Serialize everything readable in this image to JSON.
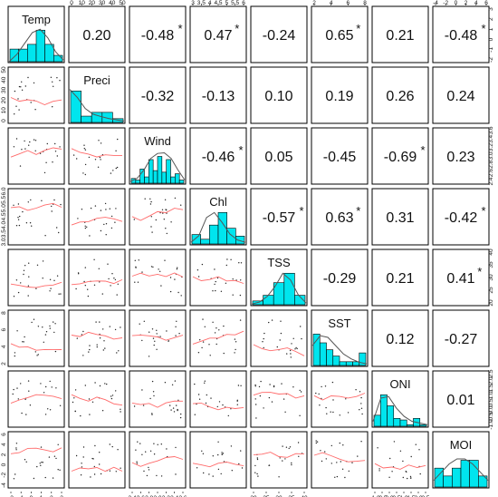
{
  "chart_data": {
    "type": "scatter",
    "variables": [
      "Temp",
      "Preci",
      "Wind",
      "Chl",
      "TSS",
      "SST",
      "ONI",
      "MOI"
    ],
    "correlations": [
      {
        "row": 0,
        "col": 1,
        "label": "0.20",
        "star": false
      },
      {
        "row": 0,
        "col": 2,
        "label": "-0.48",
        "star": true
      },
      {
        "row": 0,
        "col": 3,
        "label": "0.47",
        "star": true
      },
      {
        "row": 0,
        "col": 4,
        "label": "-0.24",
        "star": false
      },
      {
        "row": 0,
        "col": 5,
        "label": "0.65",
        "star": true
      },
      {
        "row": 0,
        "col": 6,
        "label": "0.21",
        "star": false
      },
      {
        "row": 0,
        "col": 7,
        "label": "-0.48",
        "star": true
      },
      {
        "row": 1,
        "col": 2,
        "label": "-0.32",
        "star": false
      },
      {
        "row": 1,
        "col": 3,
        "label": "-0.13",
        "star": false
      },
      {
        "row": 1,
        "col": 4,
        "label": "0.10",
        "star": false
      },
      {
        "row": 1,
        "col": 5,
        "label": "0.19",
        "star": false
      },
      {
        "row": 1,
        "col": 6,
        "label": "0.26",
        "star": false
      },
      {
        "row": 1,
        "col": 7,
        "label": "0.24",
        "star": false
      },
      {
        "row": 2,
        "col": 3,
        "label": "-0.46",
        "star": true
      },
      {
        "row": 2,
        "col": 4,
        "label": "0.05",
        "star": false
      },
      {
        "row": 2,
        "col": 5,
        "label": "-0.45",
        "star": false
      },
      {
        "row": 2,
        "col": 6,
        "label": "-0.69",
        "star": true
      },
      {
        "row": 2,
        "col": 7,
        "label": "0.23",
        "star": false
      },
      {
        "row": 3,
        "col": 4,
        "label": "-0.57",
        "star": true
      },
      {
        "row": 3,
        "col": 5,
        "label": "0.63",
        "star": true
      },
      {
        "row": 3,
        "col": 6,
        "label": "0.31",
        "star": false
      },
      {
        "row": 3,
        "col": 7,
        "label": "-0.42",
        "star": true
      },
      {
        "row": 4,
        "col": 5,
        "label": "-0.29",
        "star": false
      },
      {
        "row": 4,
        "col": 6,
        "label": "0.21",
        "star": false
      },
      {
        "row": 4,
        "col": 7,
        "label": "0.41",
        "star": true
      },
      {
        "row": 5,
        "col": 6,
        "label": "0.12",
        "star": false
      },
      {
        "row": 5,
        "col": 7,
        "label": "-0.27",
        "star": false
      },
      {
        "row": 6,
        "col": 7,
        "label": "0.01",
        "star": false
      }
    ],
    "histograms": [
      {
        "var": "Temp",
        "bars": [
          0.4,
          0.4,
          0.55,
          1.0,
          0.55,
          0.2
        ],
        "curve": [
          0.0,
          0.22,
          0.55,
          0.88,
          0.98,
          0.72,
          0.3,
          0.05
        ]
      },
      {
        "var": "Preci",
        "bars": [
          1.0,
          0.2,
          0.32,
          0.32,
          0.12
        ],
        "curve": [
          1.0,
          0.75,
          0.42,
          0.25,
          0.18,
          0.12,
          0.08,
          0.04
        ]
      },
      {
        "var": "Wind",
        "bars": [
          0.15,
          0.1,
          0.45,
          0.2,
          0.75,
          0.4,
          0.85,
          0.35,
          0.75,
          0.2,
          0.3,
          0.1
        ],
        "curve": [
          0.05,
          0.15,
          0.4,
          0.75,
          0.9,
          0.92,
          0.75,
          0.4,
          0.1
        ]
      },
      {
        "var": "Chl",
        "bars": [
          0.3,
          0.15,
          0.6,
          1.0,
          0.5,
          0.25
        ],
        "curve": [
          0.05,
          0.25,
          0.8,
          0.95,
          0.65,
          0.3,
          0.12,
          0.05
        ]
      },
      {
        "var": "TSS",
        "bars": [
          0.12,
          0.3,
          0.7,
          1.0,
          0.3
        ],
        "curve": [
          0.02,
          0.08,
          0.25,
          0.55,
          0.95,
          0.75,
          0.3,
          0.05
        ]
      },
      {
        "var": "SST",
        "bars": [
          1.0,
          0.72,
          0.5,
          0.3,
          0.12,
          0.12,
          0.12,
          0.4
        ],
        "curve": [
          0.6,
          0.9,
          0.85,
          0.6,
          0.35,
          0.2,
          0.1,
          0.05
        ]
      },
      {
        "var": "ONI",
        "bars": [
          0.35,
          1.0,
          0.65,
          0.25,
          0.2,
          0.05,
          0.25,
          0.05
        ],
        "curve": [
          0.15,
          0.85,
          0.9,
          0.55,
          0.3,
          0.15,
          0.1,
          0.05
        ]
      },
      {
        "var": "MOI",
        "bars": [
          0.6,
          0.35,
          0.6,
          0.85,
          0.85,
          0.35
        ],
        "curve": [
          0.2,
          0.45,
          0.7,
          0.85,
          0.85,
          0.7,
          0.45,
          0.2
        ]
      }
    ],
    "top_axis_ticks": {
      "Preci": [
        "0",
        "10",
        "20",
        "30",
        "40",
        "50"
      ],
      "Chl": [
        "3",
        "3.5",
        "4",
        "4.5",
        "5",
        "5.5",
        "6"
      ],
      "SST": [
        "2",
        "4",
        "6",
        "8"
      ],
      "MOI": [
        "-4",
        "-2",
        "0",
        "2",
        "4",
        "6"
      ]
    },
    "bottom_axis_ticks": {
      "Temp": [
        "-2",
        "-1",
        "0",
        "1",
        "2",
        "3"
      ],
      "Wind": [
        "2.4",
        "2.6",
        "2.8",
        "3.0",
        "3.2",
        "3.4",
        "3.6"
      ],
      "TSS": [
        "20",
        "25",
        "30",
        "35",
        "40"
      ],
      "ONI": [
        "-1.0",
        "-0.5",
        "0.0",
        "0.5",
        "1.0",
        "1.5",
        "2.0",
        "2.5"
      ]
    },
    "left_axis_ticks": {
      "Preci": [
        "0",
        "10",
        "20",
        "30",
        "40",
        "50"
      ],
      "Chl": [
        "3.0",
        "3.5",
        "4.0",
        "4.5",
        "5.0",
        "5.5",
        "6.0"
      ],
      "SST": [
        "2",
        "4",
        "6",
        "8"
      ],
      "MOI": [
        "-4",
        "-2",
        "0",
        "2",
        "4",
        "6"
      ]
    },
    "right_axis_ticks": {
      "Temp": [
        "-2",
        "-1",
        "0",
        "1",
        "2",
        "3"
      ],
      "Wind": [
        "2.4",
        "2.6",
        "2.8",
        "3.0",
        "3.2",
        "3.4",
        "3.6"
      ],
      "TSS": [
        "20",
        "25",
        "30",
        "35",
        "40"
      ],
      "ONI": [
        "-1.0",
        "-0.5",
        "0.0",
        "0.5",
        "1.0",
        "1.5",
        "2.0",
        "2.5"
      ]
    },
    "colors": {
      "histogram_fill": "#00e5ee",
      "smooth_line": "#ff6a6a",
      "points": "#222222",
      "density_line": "#555555"
    }
  }
}
